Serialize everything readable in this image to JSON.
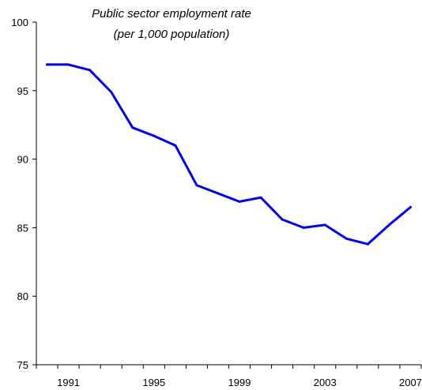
{
  "chart_data": {
    "type": "line",
    "title_lines": [
      "Public sector employment rate",
      "(per 1,000 population)"
    ],
    "xlabel": "",
    "ylabel": "",
    "ylim": [
      75,
      100
    ],
    "yticks": [
      75,
      80,
      85,
      90,
      95,
      100
    ],
    "xlim": [
      1989.5,
      2007.5
    ],
    "xticks": [
      1991,
      1995,
      1999,
      2003,
      2007
    ],
    "grid": false,
    "legend": "none",
    "series": [
      {
        "color": "#0000ee",
        "x": [
          1990,
          1991,
          1992,
          1993,
          1994,
          1995,
          1996,
          1997,
          1998,
          1999,
          2000,
          2001,
          2002,
          2003,
          2004,
          2005,
          2006,
          2007
        ],
        "values": [
          96.9,
          96.9,
          96.5,
          94.9,
          92.3,
          91.7,
          91.0,
          88.1,
          87.5,
          86.9,
          87.2,
          85.6,
          85.0,
          85.2,
          84.2,
          83.8,
          85.2,
          86.5
        ]
      }
    ]
  }
}
